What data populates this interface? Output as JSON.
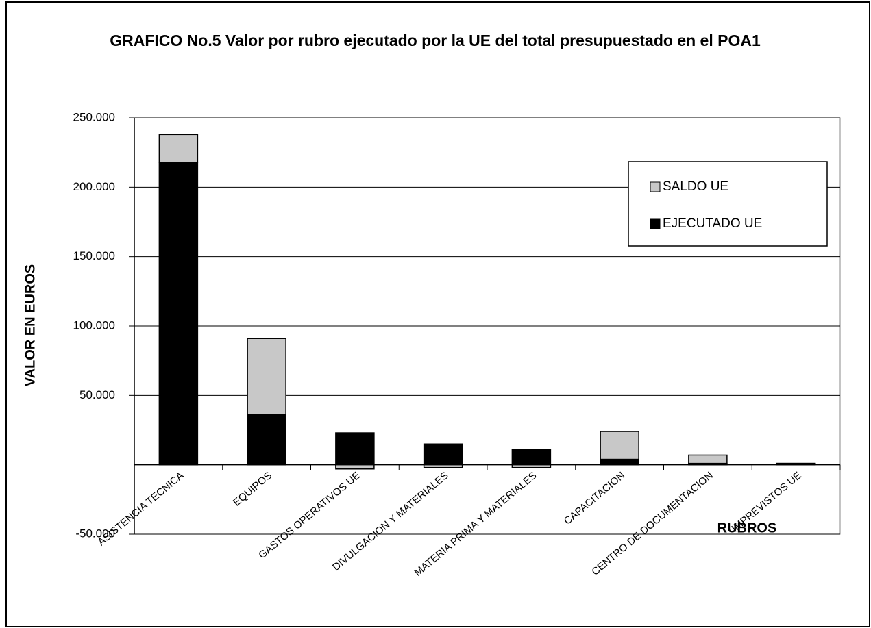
{
  "chart_data": {
    "type": "stacked_bar",
    "title": "GRAFICO No.5 Valor por rubro ejecutado por la UE del total presupuestado en el POA1",
    "ylabel": "VALOR EN EUROS",
    "xlabel": "RUBROS",
    "categories": [
      "ASISTENCIA TECNICA",
      "EQUIPOS",
      "GASTOS OPERATIVOS UE",
      "DIVULGACION Y MATERIALES",
      "MATERIA PRIMA Y MATERIALES",
      "CAPACITACION",
      "CENTRO DE DOCUMENTACION",
      "IMPREVISTOS UE"
    ],
    "series": [
      {
        "name": "EJECUTADO UE",
        "color": "#000000",
        "values": [
          218000,
          36000,
          23000,
          15000,
          11000,
          4000,
          1000,
          1000
        ]
      },
      {
        "name": "SALDO UE",
        "color": "#c8c8c8",
        "values": [
          20000,
          55000,
          -3000,
          -2000,
          -2000,
          20000,
          6000,
          0
        ]
      }
    ],
    "ylim": [
      -50000,
      250000
    ],
    "yticks": [
      {
        "value": -50000,
        "label": "-50.000"
      },
      {
        "value": 50000,
        "label": "50.000"
      },
      {
        "value": 100000,
        "label": "100.000"
      },
      {
        "value": 150000,
        "label": "150.000"
      },
      {
        "value": 200000,
        "label": "200.000"
      },
      {
        "value": 250000,
        "label": "250.000"
      }
    ],
    "grid": true,
    "legend": "upper right"
  }
}
